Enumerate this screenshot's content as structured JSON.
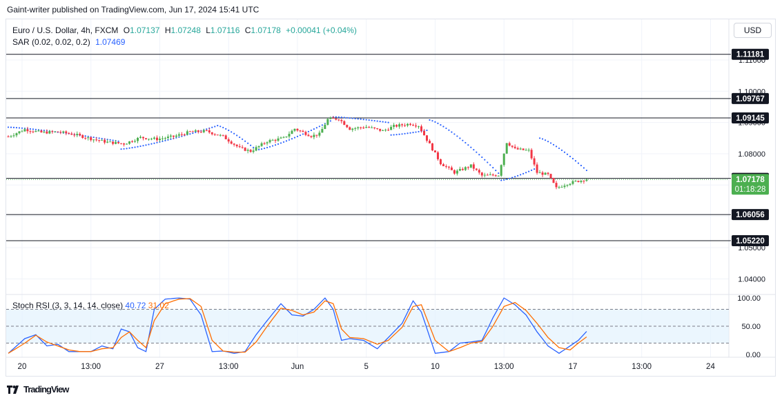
{
  "publisher": "Gaint-writer published on TradingView.com, Jun 17, 2024 15:41 UTC",
  "legend": {
    "symbol": "Euro / U.S. Dollar, 4h, FXCM",
    "open_label": "O",
    "open": "1.07137",
    "high_label": "H",
    "high": "1.07248",
    "low_label": "L",
    "low": "1.07116",
    "close_label": "C",
    "close": "1.07178",
    "change": "+0.00041 (+0.04%)",
    "sar_label": "SAR (0.02, 0.02, 0.2)",
    "sar_value": "1.07469"
  },
  "currency_button": "USD",
  "stoch_legend": {
    "label": "Stoch RSI (3, 3, 14, 14, close)",
    "k_value": "40.72",
    "d_value": "31.02"
  },
  "footer": {
    "brand": "TradingView"
  },
  "colors": {
    "up": "#4caf50",
    "down": "#f23645",
    "sar": "#2962ff",
    "k": "#2962ff",
    "d": "#ff6d00",
    "band": "#e3f2fd"
  },
  "chart_data": [
    {
      "type": "candlestick",
      "title": "Euro / U.S. Dollar, 4h, FXCM",
      "ylim": [
        1.035,
        1.123
      ],
      "y_ticks": [
        "1.11000",
        "1.10000",
        "1.09000",
        "1.08000",
        "1.07000",
        "1.06000",
        "1.05000",
        "1.04000"
      ],
      "y_tick_values": [
        1.11,
        1.1,
        1.09,
        1.08,
        1.07,
        1.06,
        1.05,
        1.04
      ],
      "x_ticks": [
        "20",
        "13:00",
        "27",
        "13:00",
        "Jun",
        "5",
        "10",
        "13:00",
        "17",
        "13:00",
        "24"
      ],
      "x_tick_positions": [
        5,
        30,
        55,
        80,
        105,
        130,
        155,
        180,
        205,
        230,
        255
      ],
      "horizontal_levels": [
        {
          "label": "1.11181",
          "value": 1.11181
        },
        {
          "label": "1.09767",
          "value": 1.09767
        },
        {
          "label": "1.09145",
          "value": 1.09145
        },
        {
          "label": "1.07214",
          "value": 1.07214
        },
        {
          "label": "1.06056",
          "value": 1.06056
        },
        {
          "label": "1.05220",
          "value": 1.0522
        }
      ],
      "current_price": {
        "label": "1.07178",
        "value": 1.07178,
        "countdown": "01:18:28"
      },
      "last_candle_index": 210,
      "close_anchors": [
        [
          0,
          1.0855
        ],
        [
          6,
          1.0878
        ],
        [
          12,
          1.0868
        ],
        [
          18,
          1.087
        ],
        [
          24,
          1.0862
        ],
        [
          30,
          1.0848
        ],
        [
          36,
          1.0837
        ],
        [
          42,
          1.0832
        ],
        [
          48,
          1.0852
        ],
        [
          54,
          1.0847
        ],
        [
          60,
          1.0855
        ],
        [
          66,
          1.087
        ],
        [
          72,
          1.0872
        ],
        [
          78,
          1.0855
        ],
        [
          84,
          1.0818
        ],
        [
          88,
          1.0808
        ],
        [
          94,
          1.084
        ],
        [
          100,
          1.085
        ],
        [
          104,
          1.088
        ],
        [
          110,
          1.0857
        ],
        [
          113,
          1.0863
        ],
        [
          116,
          1.091
        ],
        [
          120,
          1.0912
        ],
        [
          124,
          1.088
        ],
        [
          130,
          1.0886
        ],
        [
          136,
          1.0873
        ],
        [
          140,
          1.0888
        ],
        [
          146,
          1.0896
        ],
        [
          149,
          1.089
        ],
        [
          153,
          1.083
        ],
        [
          157,
          1.077
        ],
        [
          162,
          1.074
        ],
        [
          168,
          1.0762
        ],
        [
          172,
          1.073
        ],
        [
          178,
          1.0732
        ],
        [
          181,
          1.0837
        ],
        [
          184,
          1.0815
        ],
        [
          189,
          1.081
        ],
        [
          192,
          1.074
        ],
        [
          196,
          1.0733
        ],
        [
          199,
          1.069
        ],
        [
          203,
          1.0705
        ],
        [
          207,
          1.0713
        ],
        [
          210,
          1.07178
        ]
      ],
      "sar": [
        {
          "i": [
            0,
            40
          ],
          "v": [
            1.0885,
            1.084
          ]
        },
        {
          "i": [
            41,
            75
          ],
          "v": [
            1.0815,
            1.0887
          ]
        },
        {
          "i": [
            76,
            89
          ],
          "v": [
            1.089,
            1.082
          ]
        },
        {
          "i": [
            90,
            117
          ],
          "v": [
            1.0812,
            1.0905
          ]
        },
        {
          "i": [
            118,
            138
          ],
          "v": [
            1.0918,
            1.09
          ]
        },
        {
          "i": [
            139,
            152
          ],
          "v": [
            1.086,
            1.0875
          ]
        },
        {
          "i": [
            153,
            178
          ],
          "v": [
            1.0908,
            1.0738
          ]
        },
        {
          "i": [
            179,
            192
          ],
          "v": [
            1.0715,
            1.0755
          ]
        },
        {
          "i": [
            193,
            210
          ],
          "v": [
            1.085,
            1.07469
          ]
        }
      ]
    },
    {
      "type": "line",
      "title": "Stoch RSI (3, 3, 14, 14, close)",
      "ylim": [
        -5,
        105
      ],
      "y_ticks": [
        "100.00",
        "50.00",
        "0.00"
      ],
      "y_tick_values": [
        100,
        50,
        0
      ],
      "bands": {
        "upper": 80,
        "middle": 50,
        "lower": 20
      },
      "series": [
        {
          "name": "K",
          "anchors": [
            [
              0,
              2
            ],
            [
              6,
              28
            ],
            [
              10,
              35
            ],
            [
              14,
              15
            ],
            [
              18,
              18
            ],
            [
              22,
              5
            ],
            [
              26,
              5
            ],
            [
              30,
              5
            ],
            [
              34,
              15
            ],
            [
              38,
              10
            ],
            [
              41,
              45
            ],
            [
              44,
              40
            ],
            [
              47,
              12
            ],
            [
              50,
              5
            ],
            [
              53,
              80
            ],
            [
              57,
              98
            ],
            [
              62,
              100
            ],
            [
              66,
              98
            ],
            [
              70,
              70
            ],
            [
              74,
              5
            ],
            [
              78,
              6
            ],
            [
              82,
              2
            ],
            [
              86,
              5
            ],
            [
              90,
              35
            ],
            [
              94,
              60
            ],
            [
              99,
              90
            ],
            [
              103,
              70
            ],
            [
              107,
              68
            ],
            [
              111,
              80
            ],
            [
              115,
              100
            ],
            [
              118,
              80
            ],
            [
              121,
              25
            ],
            [
              124,
              28
            ],
            [
              129,
              25
            ],
            [
              134,
              10
            ],
            [
              138,
              30
            ],
            [
              143,
              55
            ],
            [
              147,
              95
            ],
            [
              150,
              75
            ],
            [
              155,
              2
            ],
            [
              160,
              5
            ],
            [
              164,
              20
            ],
            [
              168,
              22
            ],
            [
              172,
              25
            ],
            [
              176,
              65
            ],
            [
              180,
              100
            ],
            [
              184,
              88
            ],
            [
              188,
              70
            ],
            [
              192,
              40
            ],
            [
              196,
              15
            ],
            [
              200,
              2
            ],
            [
              204,
              15
            ],
            [
              207,
              25
            ],
            [
              210,
              40.72
            ]
          ]
        },
        {
          "name": "D",
          "anchors": [
            [
              0,
              2
            ],
            [
              6,
              20
            ],
            [
              10,
              34
            ],
            [
              14,
              22
            ],
            [
              18,
              15
            ],
            [
              22,
              8
            ],
            [
              26,
              5
            ],
            [
              30,
              5
            ],
            [
              34,
              10
            ],
            [
              38,
              12
            ],
            [
              41,
              30
            ],
            [
              44,
              40
            ],
            [
              47,
              25
            ],
            [
              50,
              12
            ],
            [
              53,
              60
            ],
            [
              57,
              90
            ],
            [
              62,
              98
            ],
            [
              66,
              99
            ],
            [
              70,
              85
            ],
            [
              74,
              25
            ],
            [
              78,
              6
            ],
            [
              82,
              4
            ],
            [
              86,
              4
            ],
            [
              90,
              22
            ],
            [
              94,
              50
            ],
            [
              99,
              82
            ],
            [
              103,
              78
            ],
            [
              107,
              70
            ],
            [
              111,
              75
            ],
            [
              115,
              95
            ],
            [
              118,
              90
            ],
            [
              121,
              45
            ],
            [
              124,
              30
            ],
            [
              129,
              28
            ],
            [
              134,
              18
            ],
            [
              138,
              25
            ],
            [
              143,
              48
            ],
            [
              147,
              85
            ],
            [
              150,
              88
            ],
            [
              155,
              25
            ],
            [
              160,
              5
            ],
            [
              164,
              12
            ],
            [
              168,
              20
            ],
            [
              172,
              23
            ],
            [
              176,
              50
            ],
            [
              180,
              85
            ],
            [
              184,
              92
            ],
            [
              188,
              78
            ],
            [
              192,
              55
            ],
            [
              196,
              30
            ],
            [
              200,
              12
            ],
            [
              204,
              8
            ],
            [
              207,
              20
            ],
            [
              210,
              31.02
            ]
          ]
        }
      ]
    }
  ]
}
